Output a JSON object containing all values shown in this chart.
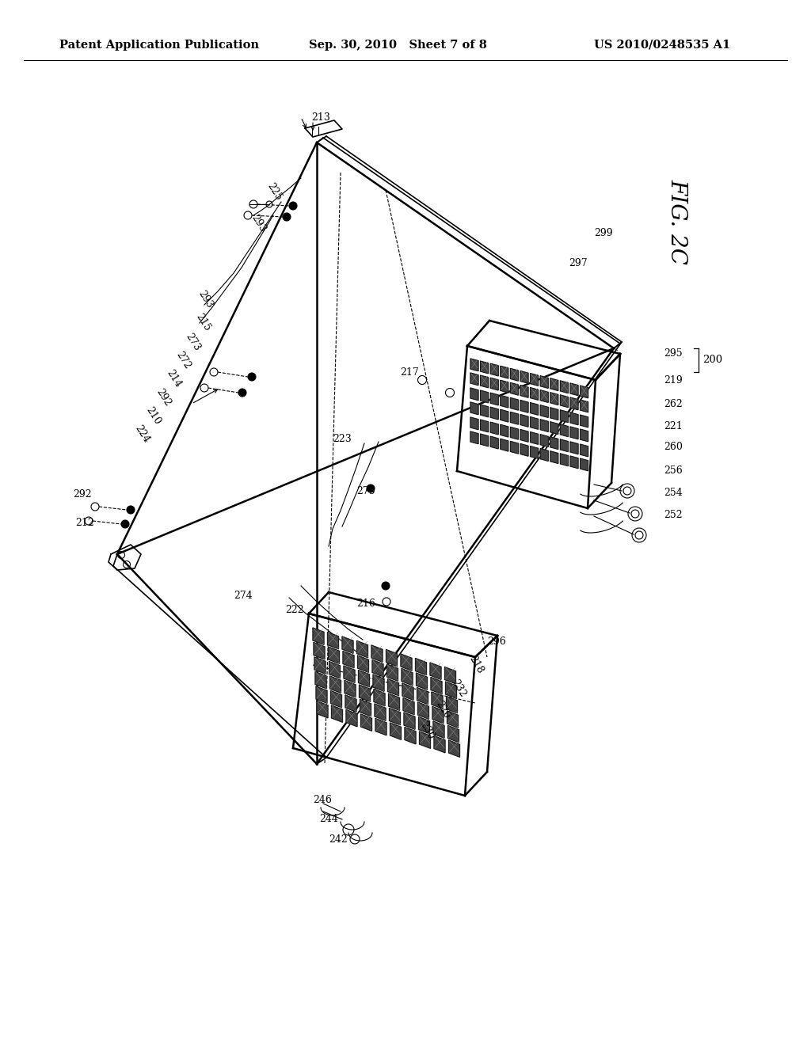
{
  "bg_color": "#ffffff",
  "header_left": "Patent Application Publication",
  "header_center": "Sep. 30, 2010   Sheet 7 of 8",
  "header_right": "US 2010/0248535 A1",
  "fig_label": "FIG. 2C",
  "header_fontsize": 10.5
}
